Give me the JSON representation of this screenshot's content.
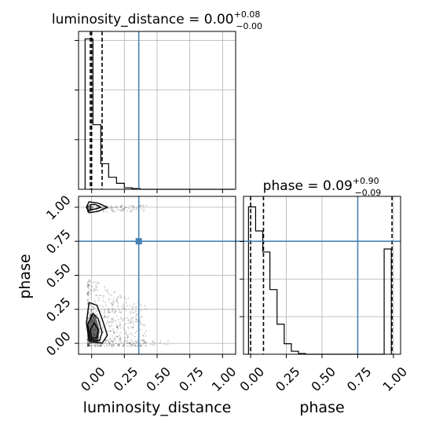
{
  "chart_data": [
    {
      "type": "histogram",
      "panel": "luminosity_distance-marginal",
      "title": {
        "param": "luminosity_distance",
        "value": "0.00",
        "upper": "+0.08",
        "lower": "−0.00"
      },
      "xlim": [
        -0.1,
        1.1
      ],
      "ylim": [
        0,
        1.05
      ],
      "bins": {
        "start": -0.05,
        "width": 0.06,
        "values": [
          1.0,
          0.43,
          0.17,
          0.08,
          0.04,
          0.01,
          0.005,
          0,
          0,
          0,
          0,
          0,
          0,
          0,
          0,
          0,
          0,
          0,
          0
        ]
      },
      "quantiles": [
        -0.01,
        0.0,
        0.08
      ],
      "truth": 0.36,
      "grid": true
    },
    {
      "type": "histogram",
      "panel": "phase-marginal",
      "title": {
        "param": "phase",
        "value": "0.09",
        "upper": "+0.90",
        "lower": "−0.09"
      },
      "xlim": [
        -0.05,
        1.05
      ],
      "ylim": [
        0,
        1.05
      ],
      "bins": {
        "start": -0.015,
        "width": 0.05,
        "values": [
          0.98,
          0.82,
          0.68,
          0.43,
          0.2,
          0.07,
          0.02,
          0.005,
          0,
          0,
          0,
          0,
          0,
          0,
          0,
          0,
          0,
          0,
          0,
          0.7
        ]
      },
      "quantiles": [
        0.0,
        0.09,
        0.99
      ],
      "truth": 0.75,
      "grid": true
    },
    {
      "type": "scatter",
      "panel": "luminosity_distance-vs-phase",
      "xlabel": "luminosity_distance",
      "ylabel": "phase",
      "xlim": [
        -0.1,
        1.1
      ],
      "ylim": [
        -0.08,
        1.08
      ],
      "xticks": [
        "0.00",
        "0.25",
        "0.50",
        "0.75",
        "1.00"
      ],
      "yticks": [
        "0.00",
        "0.25",
        "0.50",
        "0.75",
        "1.00"
      ],
      "truth": {
        "x": 0.36,
        "y": 0.75
      },
      "contours": [
        {
          "level": "outer",
          "points": [
            [
              -0.02,
              0.02
            ],
            [
              0.08,
              0.0
            ],
            [
              0.12,
              0.06
            ],
            [
              0.08,
              0.18
            ],
            [
              0.04,
              0.28
            ],
            [
              -0.02,
              0.3
            ],
            [
              -0.04,
              0.15
            ]
          ]
        },
        {
          "level": "middle",
          "points": [
            [
              -0.01,
              0.03
            ],
            [
              0.06,
              0.02
            ],
            [
              0.08,
              0.08
            ],
            [
              0.05,
              0.18
            ],
            [
              0.01,
              0.22
            ],
            [
              -0.03,
              0.14
            ]
          ]
        },
        {
          "level": "inner",
          "points": [
            [
              0.0,
              0.04
            ],
            [
              0.04,
              0.04
            ],
            [
              0.05,
              0.1
            ],
            [
              0.02,
              0.15
            ],
            [
              -0.01,
              0.1
            ]
          ]
        },
        {
          "level": "upper-outer",
          "points": [
            [
              -0.02,
              0.96
            ],
            [
              0.05,
              0.97
            ],
            [
              0.12,
              1.0
            ],
            [
              0.05,
              1.03
            ],
            [
              -0.02,
              1.04
            ],
            [
              -0.04,
              1.0
            ]
          ]
        },
        {
          "level": "upper-inner",
          "points": [
            [
              -0.01,
              0.98
            ],
            [
              0.04,
              0.99
            ],
            [
              0.07,
              1.0
            ],
            [
              0.03,
              1.02
            ],
            [
              -0.01,
              1.02
            ]
          ]
        }
      ],
      "grid": true
    }
  ],
  "colors": {
    "truth": "#4682b4",
    "hist": "#000000",
    "grid": "#b0b0b0",
    "points": "#000000"
  }
}
